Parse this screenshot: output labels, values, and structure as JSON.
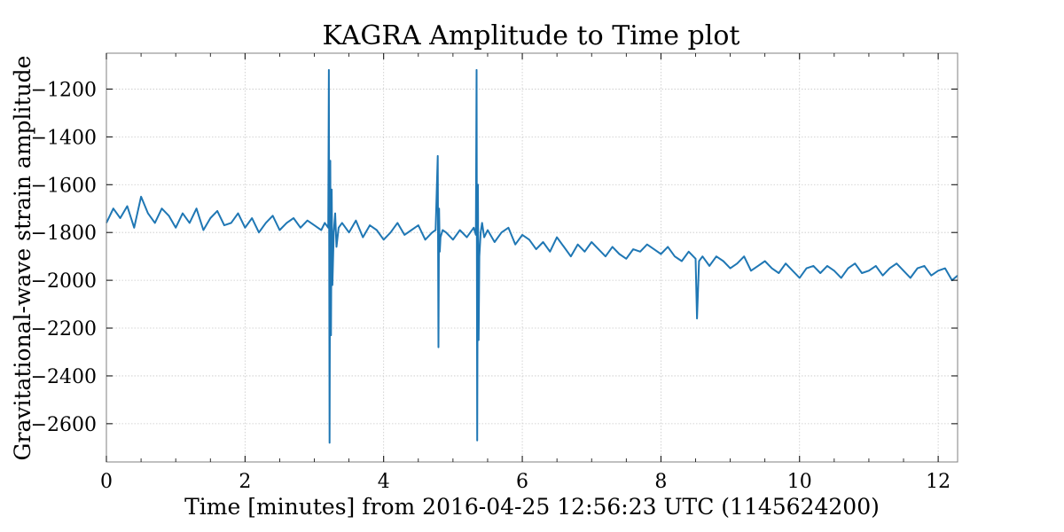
{
  "chart_data": {
    "type": "line",
    "title": "KAGRA Amplitude to Time plot",
    "xlabel": "Time [minutes] from 2016-04-25 12:56:23 UTC (1145624200)",
    "ylabel": "Gravitational-wave strain amplitude",
    "xlim": [
      0,
      12.28
    ],
    "ylim": [
      -2760,
      -1050
    ],
    "xticks": [
      0,
      2,
      4,
      6,
      8,
      10,
      12
    ],
    "xtick_labels": [
      "0",
      "2",
      "4",
      "6",
      "8",
      "10",
      "12"
    ],
    "yticks": [
      -1200,
      -1400,
      -1600,
      -1800,
      -2000,
      -2200,
      -2400,
      -2600
    ],
    "ytick_labels": [
      "−1200",
      "−1400",
      "−1600",
      "−1800",
      "−2000",
      "−2200",
      "−2400",
      "−2600"
    ],
    "grid": true,
    "series": [
      {
        "color": "#1f77b4",
        "x": [
          0,
          0.1,
          0.2,
          0.3,
          0.4,
          0.5,
          0.6,
          0.7,
          0.8,
          0.9,
          1.0,
          1.1,
          1.2,
          1.3,
          1.4,
          1.5,
          1.6,
          1.7,
          1.8,
          1.9,
          2.0,
          2.1,
          2.2,
          2.3,
          2.4,
          2.5,
          2.6,
          2.7,
          2.8,
          2.9,
          3.0,
          3.1,
          3.15,
          3.2,
          3.21,
          3.22,
          3.23,
          3.24,
          3.25,
          3.26,
          3.28,
          3.3,
          3.32,
          3.35,
          3.4,
          3.5,
          3.6,
          3.7,
          3.8,
          3.9,
          4.0,
          4.1,
          4.2,
          4.3,
          4.4,
          4.5,
          4.6,
          4.7,
          4.75,
          4.78,
          4.79,
          4.8,
          4.81,
          4.82,
          4.85,
          4.9,
          5.0,
          5.1,
          5.2,
          5.3,
          5.33,
          5.34,
          5.35,
          5.36,
          5.37,
          5.38,
          5.4,
          5.42,
          5.45,
          5.5,
          5.6,
          5.7,
          5.8,
          5.9,
          6.0,
          6.1,
          6.2,
          6.3,
          6.4,
          6.5,
          6.6,
          6.7,
          6.8,
          6.9,
          7.0,
          7.1,
          7.2,
          7.3,
          7.4,
          7.5,
          7.6,
          7.7,
          7.8,
          7.9,
          8.0,
          8.1,
          8.2,
          8.3,
          8.4,
          8.5,
          8.52,
          8.55,
          8.6,
          8.7,
          8.8,
          8.9,
          9.0,
          9.1,
          9.2,
          9.3,
          9.4,
          9.5,
          9.6,
          9.7,
          9.8,
          9.9,
          10.0,
          10.1,
          10.2,
          10.3,
          10.4,
          10.5,
          10.6,
          10.7,
          10.8,
          10.9,
          11.0,
          11.1,
          11.2,
          11.3,
          11.4,
          11.5,
          11.6,
          11.7,
          11.8,
          11.9,
          12.0,
          12.1,
          12.2,
          12.28
        ],
        "y": [
          -1760,
          -1700,
          -1740,
          -1690,
          -1780,
          -1650,
          -1720,
          -1760,
          -1700,
          -1730,
          -1780,
          -1720,
          -1760,
          -1700,
          -1790,
          -1740,
          -1710,
          -1770,
          -1760,
          -1720,
          -1780,
          -1740,
          -1800,
          -1760,
          -1730,
          -1790,
          -1760,
          -1740,
          -1780,
          -1750,
          -1770,
          -1790,
          -1760,
          -1780,
          -1120,
          -2680,
          -1500,
          -2230,
          -1620,
          -2020,
          -1800,
          -1720,
          -1860,
          -1780,
          -1760,
          -1800,
          -1750,
          -1820,
          -1770,
          -1790,
          -1830,
          -1800,
          -1760,
          -1810,
          -1790,
          -1770,
          -1830,
          -1800,
          -1790,
          -1480,
          -2280,
          -1700,
          -1880,
          -1820,
          -1790,
          -1800,
          -1830,
          -1790,
          -1820,
          -1780,
          -1810,
          -1120,
          -2670,
          -1600,
          -2250,
          -1900,
          -1800,
          -1760,
          -1820,
          -1790,
          -1840,
          -1800,
          -1780,
          -1850,
          -1810,
          -1830,
          -1870,
          -1840,
          -1880,
          -1820,
          -1860,
          -1900,
          -1850,
          -1880,
          -1840,
          -1870,
          -1900,
          -1860,
          -1890,
          -1910,
          -1870,
          -1880,
          -1850,
          -1870,
          -1890,
          -1860,
          -1900,
          -1920,
          -1880,
          -1910,
          -2160,
          -1920,
          -1900,
          -1940,
          -1900,
          -1920,
          -1950,
          -1930,
          -1900,
          -1960,
          -1940,
          -1920,
          -1950,
          -1970,
          -1930,
          -1960,
          -1990,
          -1950,
          -1940,
          -1970,
          -1940,
          -1960,
          -1990,
          -1950,
          -1930,
          -1970,
          -1960,
          -1940,
          -1980,
          -1950,
          -1930,
          -1960,
          -1990,
          -1950,
          -1940,
          -1980,
          -1960,
          -1950,
          -2000,
          -1980
        ]
      }
    ]
  }
}
